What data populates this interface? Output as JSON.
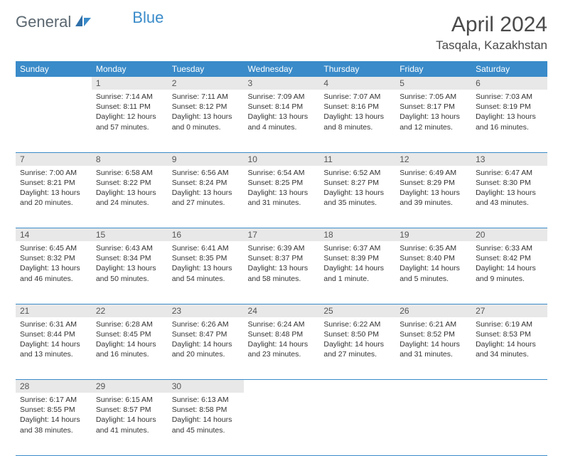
{
  "brand": {
    "text1": "General",
    "text2": "Blue"
  },
  "title": {
    "month_year": "April 2024",
    "location": "Tasqala, Kazakhstan"
  },
  "colors": {
    "header_bg": "#3a8bc9",
    "header_fg": "#ffffff",
    "daynum_bg": "#e8e8e8",
    "border": "#3a8bc9",
    "logo_gray": "#5b6770",
    "logo_blue": "#3a8bc9"
  },
  "type": "calendar-table",
  "columns": [
    "Sunday",
    "Monday",
    "Tuesday",
    "Wednesday",
    "Thursday",
    "Friday",
    "Saturday"
  ],
  "weeks": [
    [
      null,
      {
        "n": "1",
        "sr": "7:14 AM",
        "ss": "8:11 PM",
        "dl": "12 hours and 57 minutes."
      },
      {
        "n": "2",
        "sr": "7:11 AM",
        "ss": "8:12 PM",
        "dl": "13 hours and 0 minutes."
      },
      {
        "n": "3",
        "sr": "7:09 AM",
        "ss": "8:14 PM",
        "dl": "13 hours and 4 minutes."
      },
      {
        "n": "4",
        "sr": "7:07 AM",
        "ss": "8:16 PM",
        "dl": "13 hours and 8 minutes."
      },
      {
        "n": "5",
        "sr": "7:05 AM",
        "ss": "8:17 PM",
        "dl": "13 hours and 12 minutes."
      },
      {
        "n": "6",
        "sr": "7:03 AM",
        "ss": "8:19 PM",
        "dl": "13 hours and 16 minutes."
      }
    ],
    [
      {
        "n": "7",
        "sr": "7:00 AM",
        "ss": "8:21 PM",
        "dl": "13 hours and 20 minutes."
      },
      {
        "n": "8",
        "sr": "6:58 AM",
        "ss": "8:22 PM",
        "dl": "13 hours and 24 minutes."
      },
      {
        "n": "9",
        "sr": "6:56 AM",
        "ss": "8:24 PM",
        "dl": "13 hours and 27 minutes."
      },
      {
        "n": "10",
        "sr": "6:54 AM",
        "ss": "8:25 PM",
        "dl": "13 hours and 31 minutes."
      },
      {
        "n": "11",
        "sr": "6:52 AM",
        "ss": "8:27 PM",
        "dl": "13 hours and 35 minutes."
      },
      {
        "n": "12",
        "sr": "6:49 AM",
        "ss": "8:29 PM",
        "dl": "13 hours and 39 minutes."
      },
      {
        "n": "13",
        "sr": "6:47 AM",
        "ss": "8:30 PM",
        "dl": "13 hours and 43 minutes."
      }
    ],
    [
      {
        "n": "14",
        "sr": "6:45 AM",
        "ss": "8:32 PM",
        "dl": "13 hours and 46 minutes."
      },
      {
        "n": "15",
        "sr": "6:43 AM",
        "ss": "8:34 PM",
        "dl": "13 hours and 50 minutes."
      },
      {
        "n": "16",
        "sr": "6:41 AM",
        "ss": "8:35 PM",
        "dl": "13 hours and 54 minutes."
      },
      {
        "n": "17",
        "sr": "6:39 AM",
        "ss": "8:37 PM",
        "dl": "13 hours and 58 minutes."
      },
      {
        "n": "18",
        "sr": "6:37 AM",
        "ss": "8:39 PM",
        "dl": "14 hours and 1 minute."
      },
      {
        "n": "19",
        "sr": "6:35 AM",
        "ss": "8:40 PM",
        "dl": "14 hours and 5 minutes."
      },
      {
        "n": "20",
        "sr": "6:33 AM",
        "ss": "8:42 PM",
        "dl": "14 hours and 9 minutes."
      }
    ],
    [
      {
        "n": "21",
        "sr": "6:31 AM",
        "ss": "8:44 PM",
        "dl": "14 hours and 13 minutes."
      },
      {
        "n": "22",
        "sr": "6:28 AM",
        "ss": "8:45 PM",
        "dl": "14 hours and 16 minutes."
      },
      {
        "n": "23",
        "sr": "6:26 AM",
        "ss": "8:47 PM",
        "dl": "14 hours and 20 minutes."
      },
      {
        "n": "24",
        "sr": "6:24 AM",
        "ss": "8:48 PM",
        "dl": "14 hours and 23 minutes."
      },
      {
        "n": "25",
        "sr": "6:22 AM",
        "ss": "8:50 PM",
        "dl": "14 hours and 27 minutes."
      },
      {
        "n": "26",
        "sr": "6:21 AM",
        "ss": "8:52 PM",
        "dl": "14 hours and 31 minutes."
      },
      {
        "n": "27",
        "sr": "6:19 AM",
        "ss": "8:53 PM",
        "dl": "14 hours and 34 minutes."
      }
    ],
    [
      {
        "n": "28",
        "sr": "6:17 AM",
        "ss": "8:55 PM",
        "dl": "14 hours and 38 minutes."
      },
      {
        "n": "29",
        "sr": "6:15 AM",
        "ss": "8:57 PM",
        "dl": "14 hours and 41 minutes."
      },
      {
        "n": "30",
        "sr": "6:13 AM",
        "ss": "8:58 PM",
        "dl": "14 hours and 45 minutes."
      },
      null,
      null,
      null,
      null
    ]
  ],
  "labels": {
    "sunrise": "Sunrise:",
    "sunset": "Sunset:",
    "daylight": "Daylight:"
  }
}
